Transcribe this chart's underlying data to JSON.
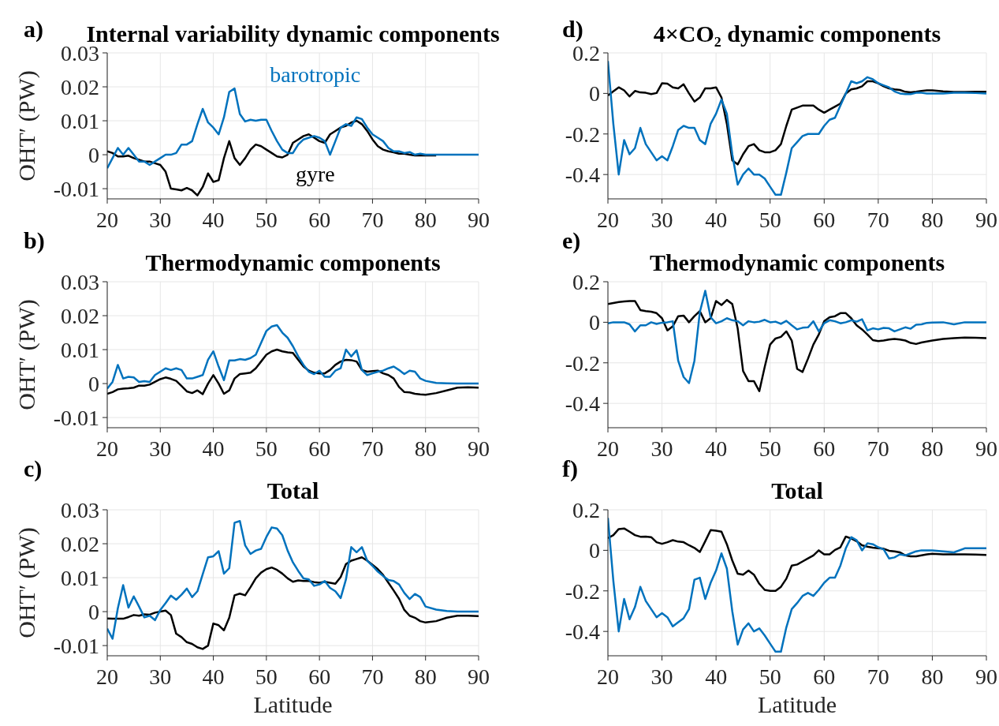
{
  "chart_data": [
    {
      "type": "line",
      "title": "Internal variability dynamic components",
      "ylabel": "OHT′ (PW)",
      "annotations": [
        "a)"
      ],
      "grid": true,
      "xlim": [
        20,
        90
      ],
      "xticks": [
        20,
        30,
        40,
        50,
        60,
        70,
        80,
        90
      ],
      "ylim": [
        -0.013,
        0.03
      ],
      "yticks": [
        -0.01,
        0,
        0.01,
        0.02,
        0.03
      ],
      "x": [
        20,
        21,
        22,
        23,
        24,
        25,
        26,
        27,
        28,
        29,
        30,
        31,
        32,
        33,
        34,
        35,
        36,
        37,
        38,
        39,
        40,
        41,
        42,
        43,
        44,
        45,
        46,
        47,
        48,
        49,
        50,
        51,
        52,
        53,
        54,
        55,
        56,
        57,
        58,
        59,
        60,
        61,
        62,
        63,
        64,
        65,
        66,
        67,
        68,
        69,
        70,
        71,
        72,
        73,
        74,
        75,
        76,
        77,
        78,
        79,
        80,
        82,
        84,
        86,
        88,
        90
      ],
      "series": [
        {
          "name": "barotropic",
          "color": "#0072bd",
          "values": [
            -0.004,
            -0.001,
            0.002,
            0,
            0.002,
            0,
            -0.002,
            -0.002,
            -0.003,
            -0.002,
            -0.001,
            0,
            0,
            0.0005,
            0.003,
            0.003,
            0.004,
            0.009,
            0.0135,
            0.0095,
            0.008,
            0.006,
            0.011,
            0.0185,
            0.0195,
            0.012,
            0.0098,
            0.0103,
            0.01,
            0.0103,
            0.0103,
            0.007,
            0.004,
            0.0015,
            0.0005,
            0.0005,
            0.003,
            0.0045,
            0.005,
            0.0055,
            0.005,
            0.004,
            0,
            0.004,
            0.008,
            0.009,
            0.0085,
            0.011,
            0.0105,
            0.008,
            0.006,
            0.005,
            0.004,
            0.002,
            0.001,
            0.001,
            0.0005,
            0.0008,
            0,
            0.0003,
            0,
            0,
            0,
            0,
            0,
            0
          ]
        },
        {
          "name": "gyre",
          "color": "#000000",
          "values": [
            0.001,
            0.0005,
            -0.0005,
            -0.0005,
            -0.0003,
            -0.001,
            -0.0015,
            -0.002,
            -0.002,
            -0.0025,
            -0.003,
            -0.005,
            -0.01,
            -0.0102,
            -0.0105,
            -0.0098,
            -0.0105,
            -0.012,
            -0.0095,
            -0.0055,
            -0.008,
            -0.0075,
            -0.001,
            0.004,
            -0.001,
            -0.003,
            -0.001,
            0.0015,
            0.003,
            0.0025,
            0.0015,
            0.0005,
            -0.0005,
            -0.0008,
            0,
            0.0035,
            0.0045,
            0.0055,
            0.006,
            0.005,
            0.004,
            0.0035,
            0.006,
            0.007,
            0.008,
            0.0085,
            0.0095,
            0.01,
            0.009,
            0.007,
            0.0045,
            0.0025,
            0.0015,
            0.001,
            0.0007,
            0.0003,
            0.0003,
            0,
            -0.0002,
            -0.0002,
            -0.0002,
            -0.0002,
            null,
            null,
            null,
            null
          ]
        }
      ]
    },
    {
      "type": "line",
      "title": "Thermodynamic components",
      "ylabel": "OHT′ (PW)",
      "annotations": [
        "b)"
      ],
      "grid": true,
      "xlim": [
        20,
        90
      ],
      "xticks": [
        20,
        30,
        40,
        50,
        60,
        70,
        80,
        90
      ],
      "ylim": [
        -0.013,
        0.03
      ],
      "yticks": [
        -0.01,
        0,
        0.01,
        0.02,
        0.03
      ],
      "x": [
        20,
        21,
        22,
        23,
        24,
        25,
        26,
        27,
        28,
        29,
        30,
        31,
        32,
        33,
        34,
        35,
        36,
        37,
        38,
        39,
        40,
        41,
        42,
        43,
        44,
        45,
        46,
        47,
        48,
        49,
        50,
        51,
        52,
        53,
        54,
        55,
        56,
        57,
        58,
        59,
        60,
        61,
        62,
        63,
        64,
        65,
        66,
        67,
        68,
        69,
        70,
        71,
        72,
        73,
        74,
        75,
        76,
        77,
        78,
        79,
        80,
        82,
        84,
        86,
        88,
        90
      ],
      "series": [
        {
          "color": "#0072bd",
          "values": [
            -0.0015,
            0.0005,
            0.0055,
            0.0015,
            0.002,
            0.0018,
            0.0005,
            0.0007,
            0.0005,
            0.0025,
            0.0035,
            0.0045,
            0.004,
            0.0045,
            0.004,
            0.0015,
            0.0015,
            0.002,
            0.0025,
            0.007,
            0.0095,
            0.005,
            0.001,
            0.0068,
            0.0068,
            0.0072,
            0.007,
            0.0075,
            0.0085,
            0.012,
            0.0155,
            0.0168,
            0.0172,
            0.015,
            0.0135,
            0.011,
            0.008,
            0.0055,
            0.0035,
            0.0028,
            0.0038,
            0.002,
            0.002,
            0.0038,
            0.0045,
            0.01,
            0.008,
            0.0098,
            0.004,
            0.0025,
            0.003,
            0.0035,
            0.0038,
            0.0045,
            0.005,
            0.004,
            0.0028,
            0.0038,
            0.0035,
            0.0015,
            0.0008,
            0.0002,
            0.0001,
            0,
            0,
            0
          ]
        },
        {
          "color": "#000000",
          "values": [
            -0.003,
            -0.0025,
            -0.0017,
            -0.0015,
            -0.0014,
            -0.0012,
            -0.0006,
            -0.0006,
            -0.0003,
            0.0005,
            0.0013,
            0.0018,
            0.0014,
            0.0008,
            -0.0007,
            -0.0023,
            -0.0028,
            -0.002,
            -0.0031,
            0,
            0.0025,
            0,
            -0.003,
            -0.002,
            0.0015,
            0.0028,
            0.003,
            0.0032,
            0.0045,
            0.0065,
            0.0085,
            0.0095,
            0.01,
            0.0095,
            0.0092,
            0.009,
            0.007,
            0.005,
            0.0038,
            0.0032,
            0.003,
            0.003,
            0.004,
            0.0055,
            0.0065,
            0.007,
            0.0069,
            0.0065,
            0.004,
            0.0035,
            0.0037,
            0.0038,
            0.003,
            0.0025,
            0.0015,
            -0.001,
            -0.0025,
            -0.0026,
            -0.003,
            -0.0032,
            -0.0033,
            -0.0028,
            -0.002,
            -0.0012,
            -0.0011,
            -0.0012
          ]
        }
      ]
    },
    {
      "type": "line",
      "title": "Total",
      "xlabel": "Latitude",
      "ylabel": "OHT′ (PW)",
      "annotations": [
        "c)"
      ],
      "grid": true,
      "xlim": [
        20,
        90
      ],
      "xticks": [
        20,
        30,
        40,
        50,
        60,
        70,
        80,
        90
      ],
      "ylim": [
        -0.013,
        0.03
      ],
      "yticks": [
        -0.01,
        0,
        0.01,
        0.02,
        0.03
      ],
      "x": [
        20,
        21,
        22,
        23,
        24,
        25,
        26,
        27,
        28,
        29,
        30,
        31,
        32,
        33,
        34,
        35,
        36,
        37,
        38,
        39,
        40,
        41,
        42,
        43,
        44,
        45,
        46,
        47,
        48,
        49,
        50,
        51,
        52,
        53,
        54,
        55,
        56,
        57,
        58,
        59,
        60,
        61,
        62,
        63,
        64,
        65,
        66,
        67,
        68,
        69,
        70,
        71,
        72,
        73,
        74,
        75,
        76,
        77,
        78,
        79,
        80,
        82,
        84,
        86,
        88,
        90
      ],
      "series": [
        {
          "color": "#0072bd",
          "values": [
            -0.005,
            -0.008,
            0.001,
            0.0078,
            0.0012,
            0.0045,
            0.0015,
            -0.0017,
            -0.0012,
            -0.0025,
            0.0005,
            0.0025,
            0.0047,
            0.0035,
            0.005,
            0.0068,
            0.0043,
            0.006,
            0.011,
            0.016,
            0.0163,
            0.0178,
            0.0112,
            0.0128,
            0.0262,
            0.0267,
            0.0195,
            0.017,
            0.018,
            0.0185,
            0.022,
            0.0248,
            0.0245,
            0.0225,
            0.018,
            0.0145,
            0.012,
            0.0098,
            0.0095,
            0.0076,
            0.008,
            0.009,
            0.007,
            0.006,
            0.004,
            0.0095,
            0.019,
            0.0175,
            0.019,
            0.015,
            0.0135,
            0.0118,
            0.0105,
            0.0093,
            0.009,
            0.008,
            0.0055,
            0.0037,
            0.0052,
            0.0043,
            0.0015,
            0.0006,
            0.0002,
            0,
            0,
            0
          ]
        },
        {
          "color": "#000000",
          "values": [
            -0.002,
            -0.0021,
            -0.0021,
            -0.0021,
            -0.0016,
            -0.001,
            -0.0012,
            -0.0008,
            -0.0009,
            -0.0003,
            0,
            0.0003,
            -0.001,
            -0.0065,
            -0.0075,
            -0.009,
            -0.0095,
            -0.0105,
            -0.011,
            -0.01,
            -0.0035,
            -0.004,
            -0.0055,
            -0.0018,
            0.0048,
            0.0053,
            0.0048,
            0.0072,
            0.0098,
            0.0115,
            0.0125,
            0.013,
            0.0123,
            0.0112,
            0.0098,
            0.0088,
            0.0092,
            0.009,
            0.009,
            0.0087,
            0.0085,
            0.0088,
            0.0085,
            0.0082,
            0.0102,
            0.014,
            0.015,
            0.0155,
            0.016,
            0.015,
            0.0138,
            0.0125,
            0.0108,
            0.0085,
            0.0062,
            0.0038,
            0.0005,
            -0.0012,
            -0.0018,
            -0.0028,
            -0.0032,
            -0.0028,
            -0.0018,
            -0.0012,
            -0.0012,
            -0.0013
          ]
        }
      ]
    },
    {
      "type": "line",
      "title": "4×CO₂ dynamic components",
      "annotations": [
        "d)"
      ],
      "grid": true,
      "xlim": [
        20,
        90
      ],
      "xticks": [
        20,
        30,
        40,
        50,
        60,
        70,
        80,
        90
      ],
      "ylim": [
        -0.52,
        0.2
      ],
      "yticks": [
        -0.4,
        -0.2,
        0,
        0.2
      ],
      "x": [
        20,
        21,
        22,
        23,
        24,
        25,
        26,
        27,
        28,
        29,
        30,
        31,
        32,
        33,
        34,
        35,
        36,
        37,
        38,
        39,
        40,
        41,
        42,
        43,
        44,
        45,
        46,
        47,
        48,
        49,
        50,
        51,
        52,
        53,
        54,
        55,
        56,
        57,
        58,
        59,
        60,
        61,
        62,
        63,
        64,
        65,
        66,
        67,
        68,
        69,
        70,
        71,
        72,
        73,
        74,
        75,
        76,
        77,
        78,
        79,
        80,
        82,
        84,
        86,
        88,
        90
      ],
      "series": [
        {
          "color": "#0072bd",
          "values": [
            0.16,
            -0.15,
            -0.4,
            -0.23,
            -0.3,
            -0.27,
            -0.17,
            -0.25,
            -0.29,
            -0.33,
            -0.31,
            -0.33,
            -0.26,
            -0.18,
            -0.16,
            -0.17,
            -0.17,
            -0.23,
            -0.25,
            -0.15,
            -0.1,
            -0.03,
            -0.1,
            -0.3,
            -0.45,
            -0.4,
            -0.37,
            -0.4,
            -0.4,
            -0.42,
            -0.46,
            -0.5,
            -0.5,
            -0.39,
            -0.27,
            -0.24,
            -0.21,
            -0.2,
            -0.2,
            -0.2,
            -0.16,
            -0.13,
            -0.12,
            -0.06,
            0,
            0.06,
            0.05,
            0.06,
            0.08,
            0.07,
            0.05,
            0.04,
            0.03,
            0.01,
            0,
            -0.003,
            -0.003,
            0.003,
            0.003,
            0,
            0,
            0,
            0.003,
            0.003,
            0.002,
            0
          ]
        },
        {
          "color": "#000000",
          "values": [
            -0.01,
            0.01,
            0.03,
            0.015,
            -0.015,
            0.012,
            0.005,
            0.003,
            -0.003,
            0.002,
            0.05,
            0.048,
            0.03,
            0.025,
            0.045,
            0,
            -0.04,
            -0.02,
            0.025,
            0.025,
            0.03,
            -0.02,
            -0.15,
            -0.33,
            -0.35,
            -0.3,
            -0.26,
            -0.25,
            -0.28,
            -0.29,
            -0.29,
            -0.28,
            -0.25,
            -0.16,
            -0.08,
            -0.07,
            -0.06,
            -0.06,
            -0.06,
            -0.08,
            -0.095,
            -0.08,
            -0.065,
            -0.05,
            0,
            0.02,
            0.025,
            0.035,
            0.06,
            0.06,
            0.05,
            0.035,
            0.025,
            0.02,
            0.017,
            0.008,
            0.005,
            0.008,
            0.012,
            0.015,
            0.015,
            0.01,
            0.007,
            0.007,
            0.008,
            0.008
          ]
        }
      ]
    },
    {
      "type": "line",
      "title": "Thermodynamic components",
      "annotations": [
        "e)"
      ],
      "grid": true,
      "xlim": [
        20,
        90
      ],
      "xticks": [
        20,
        30,
        40,
        50,
        60,
        70,
        80,
        90
      ],
      "ylim": [
        -0.52,
        0.2
      ],
      "yticks": [
        -0.4,
        -0.2,
        0,
        0.2
      ],
      "x": [
        20,
        21,
        22,
        23,
        24,
        25,
        26,
        27,
        28,
        29,
        30,
        31,
        32,
        33,
        34,
        35,
        36,
        37,
        38,
        39,
        40,
        41,
        42,
        43,
        44,
        45,
        46,
        47,
        48,
        49,
        50,
        51,
        52,
        53,
        54,
        55,
        56,
        57,
        58,
        59,
        60,
        61,
        62,
        63,
        64,
        65,
        66,
        67,
        68,
        69,
        70,
        71,
        72,
        73,
        74,
        75,
        76,
        77,
        78,
        79,
        80,
        82,
        84,
        86,
        88,
        90
      ],
      "series": [
        {
          "color": "#0072bd",
          "values": [
            -0.005,
            0,
            0,
            0,
            -0.01,
            -0.045,
            -0.015,
            -0.015,
            0,
            -0.008,
            -0.002,
            0,
            0.005,
            -0.19,
            -0.27,
            -0.3,
            -0.19,
            0.05,
            0.155,
            0.025,
            -0.005,
            0.005,
            0.02,
            0.01,
            0.005,
            -0.015,
            0.005,
            0,
            0.003,
            0.012,
            0,
            0.003,
            -0.008,
            0.007,
            -0.015,
            -0.035,
            -0.027,
            -0.025,
            0.005,
            -0.045,
            -0.005,
            0.01,
            0.005,
            -0.005,
            0,
            0.01,
            0.003,
            0.015,
            -0.04,
            -0.03,
            -0.035,
            -0.028,
            -0.03,
            -0.045,
            -0.035,
            -0.025,
            -0.032,
            -0.012,
            -0.01,
            -0.003,
            -0.001,
            0,
            -0.01,
            0,
            0,
            0
          ]
        },
        {
          "color": "#000000",
          "values": [
            0.09,
            0.095,
            0.1,
            0.103,
            0.105,
            0.105,
            0.06,
            0.055,
            0.052,
            0.045,
            0.02,
            -0.04,
            -0.02,
            0.03,
            0.033,
            0,
            0.03,
            0.055,
            0,
            0.02,
            0.105,
            0.085,
            0.11,
            0.09,
            -0.03,
            -0.24,
            -0.29,
            -0.29,
            -0.34,
            -0.22,
            -0.11,
            -0.08,
            -0.072,
            -0.045,
            -0.09,
            -0.23,
            -0.245,
            -0.18,
            -0.11,
            -0.06,
            0.005,
            0.025,
            0.03,
            0.045,
            0.045,
            0.02,
            -0.015,
            -0.035,
            -0.06,
            -0.088,
            -0.093,
            -0.09,
            -0.085,
            -0.082,
            -0.085,
            -0.09,
            -0.102,
            -0.107,
            -0.1,
            -0.095,
            -0.09,
            -0.082,
            -0.078,
            -0.075,
            -0.076,
            -0.078
          ]
        }
      ]
    },
    {
      "type": "line",
      "title": "Total",
      "xlabel": "Latitude",
      "annotations": [
        "f)"
      ],
      "grid": true,
      "xlim": [
        20,
        90
      ],
      "xticks": [
        20,
        30,
        40,
        50,
        60,
        70,
        80,
        90
      ],
      "ylim": [
        -0.52,
        0.2
      ],
      "yticks": [
        -0.4,
        -0.2,
        0,
        0.2
      ],
      "x": [
        20,
        21,
        22,
        23,
        24,
        25,
        26,
        27,
        28,
        29,
        30,
        31,
        32,
        33,
        34,
        35,
        36,
        37,
        38,
        39,
        40,
        41,
        42,
        43,
        44,
        45,
        46,
        47,
        48,
        49,
        50,
        51,
        52,
        53,
        54,
        55,
        56,
        57,
        58,
        59,
        60,
        61,
        62,
        63,
        64,
        65,
        66,
        67,
        68,
        69,
        70,
        71,
        72,
        73,
        74,
        75,
        76,
        77,
        78,
        79,
        80,
        82,
        84,
        86,
        88,
        90
      ],
      "series": [
        {
          "color": "#0072bd",
          "values": [
            0.16,
            -0.15,
            -0.4,
            -0.24,
            -0.34,
            -0.28,
            -0.18,
            -0.25,
            -0.29,
            -0.33,
            -0.31,
            -0.33,
            -0.375,
            -0.355,
            -0.335,
            -0.29,
            -0.145,
            -0.135,
            -0.24,
            -0.16,
            -0.1,
            -0.015,
            -0.09,
            -0.3,
            -0.465,
            -0.39,
            -0.36,
            -0.4,
            -0.385,
            -0.42,
            -0.46,
            -0.5,
            -0.5,
            -0.38,
            -0.29,
            -0.26,
            -0.225,
            -0.21,
            -0.225,
            -0.195,
            -0.16,
            -0.135,
            -0.135,
            -0.075,
            0.01,
            0.065,
            0.05,
            0,
            0.035,
            0.03,
            0.015,
            0.005,
            -0.04,
            -0.035,
            -0.02,
            -0.025,
            -0.015,
            -0.005,
            0,
            0,
            0,
            -0.005,
            -0.01,
            0.01,
            0.01,
            0.01
          ]
        },
        {
          "color": "#000000",
          "values": [
            0.06,
            0.075,
            0.105,
            0.108,
            0.092,
            0.075,
            0.067,
            0.068,
            0.065,
            0.04,
            0.032,
            0.04,
            0.05,
            0.043,
            0.04,
            0.025,
            0.012,
            -0.008,
            0.045,
            0.1,
            0.097,
            0.092,
            0.03,
            -0.05,
            -0.115,
            -0.12,
            -0.1,
            -0.12,
            -0.165,
            -0.195,
            -0.2,
            -0.2,
            -0.18,
            -0.14,
            -0.075,
            -0.07,
            -0.055,
            -0.04,
            -0.025,
            0,
            -0.02,
            -0.02,
            0.002,
            0.015,
            0.068,
            0.058,
            0.045,
            0.025,
            0.018,
            0.013,
            0.01,
            0.008,
            -0.002,
            -0.005,
            -0.01,
            -0.025,
            -0.03,
            -0.03,
            -0.025,
            -0.02,
            -0.017,
            -0.02,
            -0.02,
            -0.02,
            -0.021,
            -0.023
          ]
        }
      ]
    }
  ]
}
